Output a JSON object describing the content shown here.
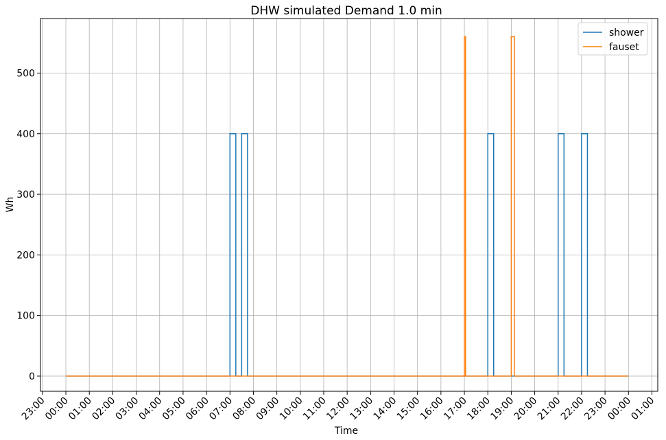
{
  "chart_data": {
    "type": "line",
    "title": "DHW simulated Demand 1.0 min",
    "xlabel": "Time",
    "ylabel": "Wh",
    "xlim": [
      "22:55",
      "25:15"
    ],
    "ylim": [
      -25,
      590
    ],
    "x_unit": "time of day (hours:minutes, 24:00 = next midnight)",
    "x_ticks": [
      "23:00",
      "00:00",
      "01:00",
      "02:00",
      "03:00",
      "04:00",
      "05:00",
      "06:00",
      "07:00",
      "08:00",
      "09:00",
      "10:00",
      "11:00",
      "12:00",
      "13:00",
      "14:00",
      "15:00",
      "16:00",
      "17:00",
      "18:00",
      "19:00",
      "20:00",
      "21:00",
      "22:00",
      "23:00",
      "00:00",
      "01:00"
    ],
    "y_ticks": [
      0,
      100,
      200,
      300,
      400,
      500
    ],
    "grid": true,
    "legend_position": "top-right",
    "series": [
      {
        "name": "shower",
        "color": "#1f77b4",
        "pulses": [
          {
            "start": "07:00",
            "end": "07:15",
            "value": 400
          },
          {
            "start": "07:30",
            "end": "07:45",
            "value": 400
          },
          {
            "start": "18:00",
            "end": "18:15",
            "value": 400
          },
          {
            "start": "21:00",
            "end": "21:15",
            "value": 400
          },
          {
            "start": "22:00",
            "end": "22:15",
            "value": 400
          }
        ],
        "baseline": 0,
        "range": [
          "00:00",
          "24:00"
        ]
      },
      {
        "name": "fauset",
        "color": "#ff7f0e",
        "pulses": [
          {
            "start": "17:00",
            "end": "17:03",
            "value": 560
          },
          {
            "start": "19:00",
            "end": "19:08",
            "value": 560
          }
        ],
        "baseline": 0,
        "range": [
          "00:00",
          "24:00"
        ]
      }
    ]
  }
}
